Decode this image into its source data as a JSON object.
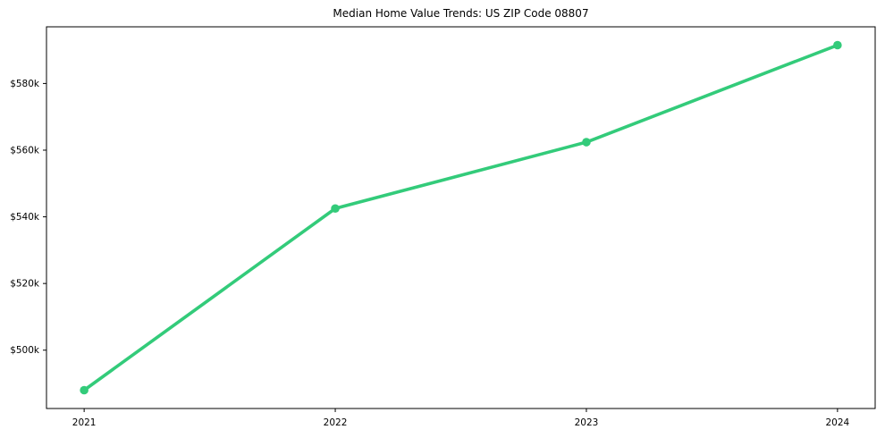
{
  "chart_data": {
    "type": "line",
    "title": "Median Home Value Trends: US ZIP Code 08807",
    "xlabel": "",
    "ylabel": "",
    "x": [
      2021,
      2022,
      2023,
      2024
    ],
    "xtick_labels": [
      "2021",
      "2022",
      "2023",
      "2024"
    ],
    "series": [
      {
        "name": "Median Home Value",
        "values": [
          488000,
          542500,
          562400,
          591500
        ],
        "color": "#33cb7a",
        "marker": "circle"
      }
    ],
    "ytick_values": [
      500000,
      520000,
      540000,
      560000,
      580000
    ],
    "ytick_labels": [
      "$500k",
      "$520k",
      "$540k",
      "$560k",
      "$580k"
    ],
    "xlim": [
      2020.85,
      2024.15
    ],
    "ylim": [
      482500,
      597000
    ],
    "grid": false,
    "legend": "none",
    "axes_color": "#000000",
    "background": "#ffffff"
  }
}
